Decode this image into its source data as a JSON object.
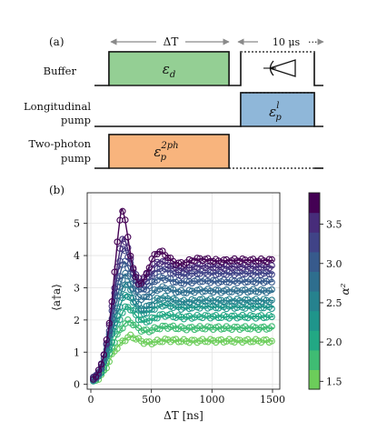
{
  "panel_a": {
    "label": "(a)",
    "delta_t": "ΔT",
    "ten_us": "10 μs",
    "rows": [
      {
        "label_lines": [
          "Buffer"
        ],
        "pulse_label": "ε_d",
        "color": "#94cf94"
      },
      {
        "label_lines": [
          "Longitudinal",
          "pump"
        ],
        "pulse_label": "ε_p^l",
        "color": "#8fb7d9"
      },
      {
        "label_lines": [
          "Two-photon",
          "pump"
        ],
        "pulse_label": "ε_p^2ph",
        "color": "#f8b47d"
      }
    ]
  },
  "panel_b": {
    "label": "(b)"
  },
  "chart_data": {
    "type": "line",
    "xlabel": "ΔT [ns]",
    "ylabel": "⟨a†a⟩",
    "xlim": [
      -30,
      1560
    ],
    "ylim": [
      -0.15,
      5.95
    ],
    "xticks": [
      0,
      500,
      1000,
      1500
    ],
    "yticks": [
      0,
      1,
      2,
      3,
      4,
      5
    ],
    "grid": true,
    "markers": "open circles (data) with solid fit lines",
    "colorbar": {
      "label": "α²",
      "range": [
        1.4,
        3.9
      ],
      "ticks": [
        1.5,
        2.0,
        2.5,
        3.0,
        3.5
      ],
      "colormap": "viridis",
      "colors": [
        "#6ccd5a",
        "#3fbc73",
        "#22a884",
        "#1f958b",
        "#26828e",
        "#2e6e8e",
        "#375a8c",
        "#404387",
        "#472c7a",
        "#440154"
      ]
    },
    "series": [
      {
        "alpha2": 1.45,
        "steady": 1.35,
        "peak": 1.5,
        "peak_t": 330
      },
      {
        "alpha2": 1.7,
        "steady": 1.75,
        "peak": 1.98,
        "peak_t": 310
      },
      {
        "alpha2": 1.95,
        "steady": 2.1,
        "peak": 2.45,
        "peak_t": 300
      },
      {
        "alpha2": 2.2,
        "steady": 2.4,
        "peak": 2.85,
        "peak_t": 290
      },
      {
        "alpha2": 2.45,
        "steady": 2.6,
        "peak": 3.2,
        "peak_t": 285
      },
      {
        "alpha2": 2.7,
        "steady": 2.9,
        "peak": 3.5,
        "peak_t": 280
      },
      {
        "alpha2": 2.95,
        "steady": 3.2,
        "peak": 3.9,
        "peak_t": 275
      },
      {
        "alpha2": 3.2,
        "steady": 3.45,
        "peak": 4.35,
        "peak_t": 270
      },
      {
        "alpha2": 3.45,
        "steady": 3.65,
        "peak": 4.7,
        "peak_t": 265
      },
      {
        "alpha2": 3.75,
        "steady": 3.85,
        "peak": 5.65,
        "peak_t": 255
      }
    ]
  }
}
